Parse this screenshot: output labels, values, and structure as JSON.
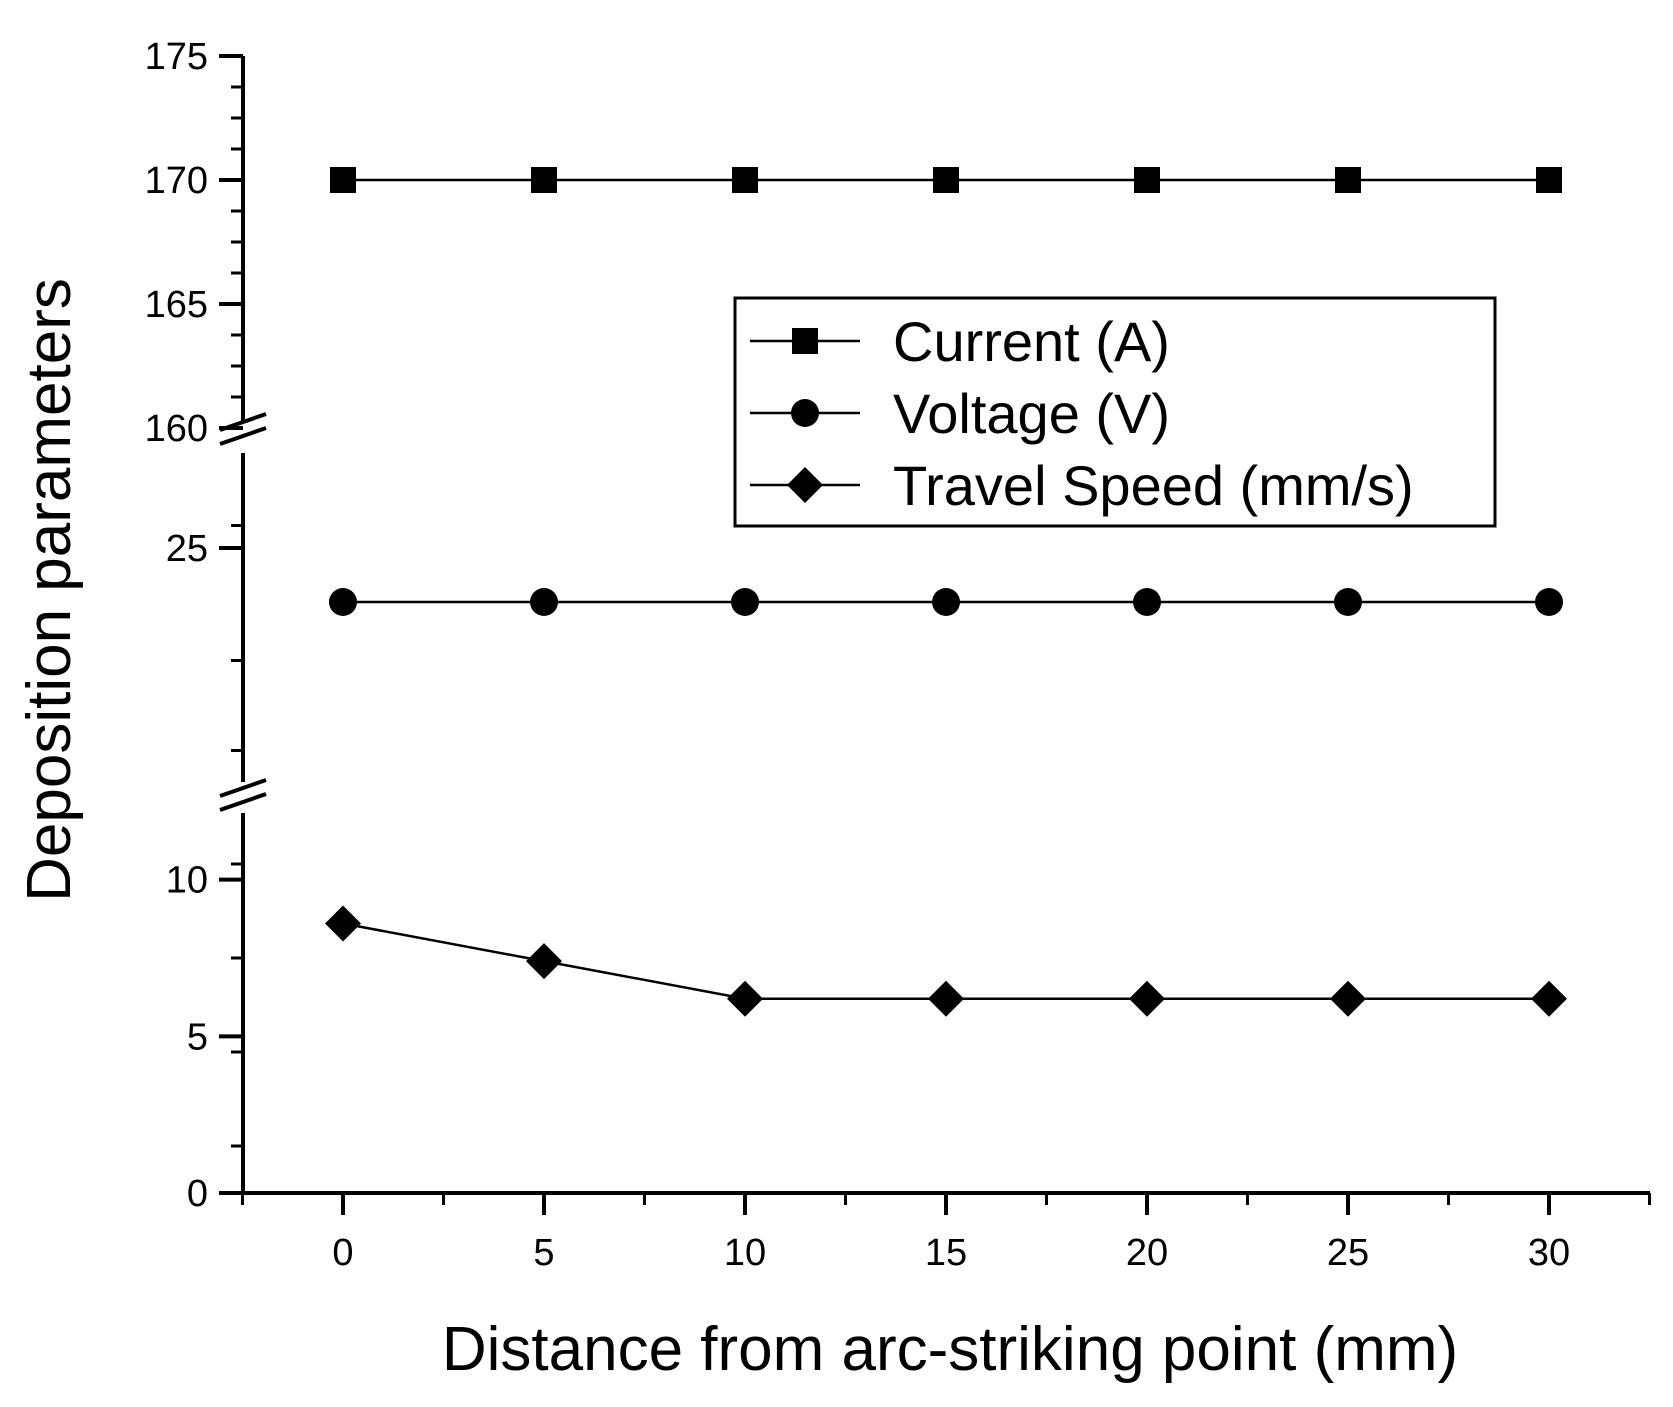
{
  "chart_data": {
    "type": "line",
    "title": "",
    "xlabel": "Distance from arc-striking point (mm)",
    "ylabel": "Deposition parameters",
    "x": [
      0,
      5,
      10,
      15,
      20,
      25,
      30
    ],
    "xlim": [
      -2.5,
      32.5
    ],
    "x_ticks": [
      "0",
      "5",
      "10",
      "15",
      "20",
      "25",
      "30"
    ],
    "y_axis_breaks": [
      {
        "range": [
          0,
          12
        ],
        "ticks": [
          "0",
          "5",
          "10"
        ]
      },
      {
        "range": [
          20,
          27
        ],
        "ticks": [
          "25"
        ]
      },
      {
        "range": [
          160,
          175
        ],
        "ticks": [
          "160",
          "165",
          "170",
          "175"
        ]
      }
    ],
    "series": [
      {
        "name": "Current (A)",
        "marker": "square",
        "values": [
          170,
          170,
          170,
          170,
          170,
          170,
          170
        ]
      },
      {
        "name": "Voltage (V)",
        "marker": "circle",
        "values": [
          23.8,
          23.8,
          23.8,
          23.8,
          23.8,
          23.8,
          23.8
        ]
      },
      {
        "name": "Travel Speed  (mm/s)",
        "marker": "diamond",
        "values": [
          8.6,
          7.4,
          6.2,
          6.2,
          6.2,
          6.2,
          6.2
        ]
      }
    ],
    "legend_position": "upper-right",
    "grid": false,
    "colors": {
      "line": "#000000",
      "marker": "#000000",
      "background": "#ffffff"
    }
  }
}
